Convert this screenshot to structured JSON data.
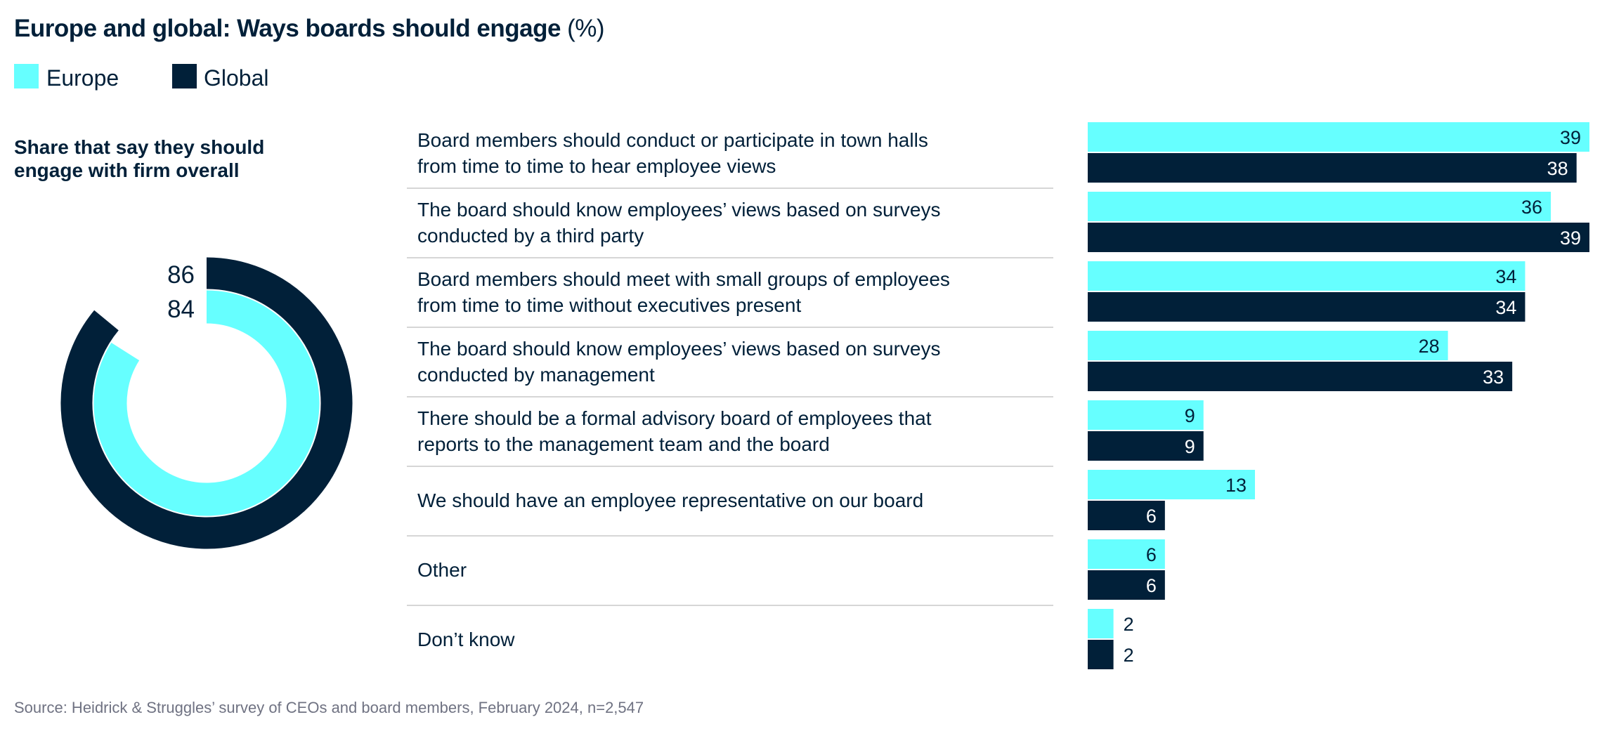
{
  "title": "Europe and global: Ways boards should engage",
  "title_unit": "(%)",
  "colors": {
    "europe": "#66FFFF",
    "global": "#012039",
    "text": "#012039",
    "source": "#6f7282"
  },
  "legend": [
    {
      "label": "Europe",
      "color": "#66FFFF"
    },
    {
      "label": "Global",
      "color": "#012039"
    }
  ],
  "source": "Source: Heidrick & Struggles’ survey of CEOs and board members, February 2024, n=2,547",
  "chart_data": [
    {
      "type": "pie",
      "variant": "concentric-donut",
      "title_lines": [
        "Share that say they should",
        "engage with firm overall"
      ],
      "series": [
        {
          "name": "Global",
          "value": 86,
          "ring": "outer"
        },
        {
          "name": "Europe",
          "value": 84,
          "ring": "inner"
        }
      ],
      "max": 100
    },
    {
      "type": "bar",
      "orientation": "horizontal",
      "categories": [
        [
          "Board members should conduct or participate in town halls",
          "from time to time to hear employee views"
        ],
        [
          "The board should know employees’ views based on surveys",
          "conducted by a third party"
        ],
        [
          "Board members should meet with small groups of employees",
          "from time to time without executives present"
        ],
        [
          "The board should know employees’ views based on surveys",
          "conducted by management"
        ],
        [
          "There should be a formal advisory board of employees that",
          "reports to the management team and the board"
        ],
        [
          "We should have an employee representative on our board"
        ],
        [
          "Other"
        ],
        [
          "Don’t know"
        ]
      ],
      "series": [
        {
          "name": "Europe",
          "values": [
            39,
            36,
            34,
            28,
            9,
            13,
            6,
            2
          ]
        },
        {
          "name": "Global",
          "values": [
            38,
            39,
            34,
            33,
            9,
            6,
            6,
            2
          ]
        }
      ],
      "xlim": [
        0,
        39
      ],
      "grid": false,
      "data_labels": true
    }
  ]
}
